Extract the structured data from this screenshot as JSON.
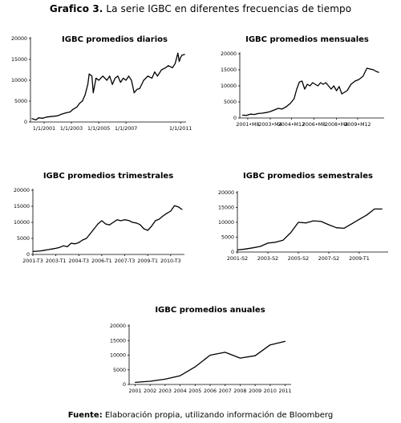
{
  "figure": {
    "label": "Grafico 3.",
    "title": "La serie IGBC en diferentes frecuencias de tiempo",
    "source_label": "Fuente:",
    "source_text": "Elaboración propia, utilizando información de Bloomberg"
  },
  "chart_data": [
    {
      "id": "diarios",
      "type": "line",
      "title": "IGBC promedios diarios",
      "xlabel": "",
      "ylabel": "",
      "ylim": [
        0,
        20000
      ],
      "yticks": [
        0,
        5000,
        10000,
        15000,
        20000
      ],
      "xlim": [
        2000.0,
        2011.4
      ],
      "xticks": [
        {
          "label": "1/1/2001",
          "x": 2001.0
        },
        {
          "label": "1/1/2003",
          "x": 2003.0
        },
        {
          "label": "1/1/2005",
          "x": 2005.0
        },
        {
          "label": "1/1/2007",
          "x": 2007.0
        },
        {
          "label": "1/1/2011",
          "x": 2011.0
        }
      ],
      "grid": false,
      "series": [
        {
          "x": [
            2000.1,
            2000.4,
            2000.6,
            2000.9,
            2001.2,
            2001.5,
            2001.8,
            2002.0,
            2002.3,
            2002.6,
            2002.9,
            2003.1,
            2003.4,
            2003.6,
            2003.8,
            2004.0,
            2004.2,
            2004.3,
            2004.5,
            2004.6,
            2004.8,
            2005.0,
            2005.3,
            2005.6,
            2005.8,
            2006.0,
            2006.2,
            2006.4,
            2006.6,
            2006.8,
            2007.0,
            2007.2,
            2007.4,
            2007.6,
            2007.8,
            2008.0,
            2008.3,
            2008.6,
            2008.9,
            2009.1,
            2009.3,
            2009.6,
            2009.9,
            2010.1,
            2010.4,
            2010.6,
            2010.8,
            2010.9,
            2011.0,
            2011.1,
            2011.3
          ],
          "values": [
            800,
            500,
            1000,
            900,
            1200,
            1300,
            1400,
            1500,
            1900,
            2200,
            2400,
            3000,
            3600,
            4500,
            5000,
            6500,
            9000,
            11500,
            11000,
            7000,
            10500,
            10000,
            11000,
            10000,
            11000,
            9000,
            10500,
            11000,
            9500,
            10500,
            10000,
            11000,
            10000,
            7000,
            7800,
            8000,
            10000,
            11000,
            10500,
            12000,
            11000,
            12500,
            13000,
            13500,
            13000,
            14000,
            16500,
            14500,
            15500,
            16000,
            16200
          ]
        }
      ]
    },
    {
      "id": "mensuales",
      "type": "line",
      "title": "IGBC promedios mensuales",
      "xlabel": "",
      "ylabel": "",
      "ylim": [
        0,
        20000
      ],
      "yticks": [
        0,
        5000,
        10000,
        15000,
        20000
      ],
      "xlim": [
        2001.0,
        2011.9
      ],
      "xticks": [
        {
          "label": "2001•M8",
          "x": 2001.6
        },
        {
          "label": "2003•M4",
          "x": 2003.3
        },
        {
          "label": "2004•M12",
          "x": 2004.9
        },
        {
          "label": "2006•M8",
          "x": 2006.6
        },
        {
          "label": "2008•M4",
          "x": 2008.3
        },
        {
          "label": "2009•M12",
          "x": 2009.9
        }
      ],
      "grid": false,
      "series": [
        {
          "x": [
            2001.2,
            2001.5,
            2001.8,
            2002.1,
            2002.4,
            2002.7,
            2003.0,
            2003.3,
            2003.6,
            2003.9,
            2004.2,
            2004.5,
            2004.8,
            2005.1,
            2005.3,
            2005.5,
            2005.7,
            2005.9,
            2006.1,
            2006.3,
            2006.5,
            2006.7,
            2006.9,
            2007.1,
            2007.3,
            2007.5,
            2007.7,
            2007.9,
            2008.1,
            2008.3,
            2008.5,
            2008.7,
            2008.9,
            2009.1,
            2009.4,
            2009.7,
            2010.0,
            2010.3,
            2010.6,
            2010.9,
            2011.1,
            2011.3,
            2011.5
          ],
          "values": [
            900,
            800,
            1200,
            1100,
            1400,
            1500,
            1700,
            2000,
            2500,
            3000,
            2800,
            3500,
            4500,
            6000,
            9000,
            11200,
            11500,
            9000,
            10500,
            10000,
            11000,
            10500,
            10000,
            11000,
            10500,
            11000,
            10000,
            9000,
            10000,
            8500,
            9800,
            7500,
            8000,
            8500,
            10500,
            11500,
            12000,
            13000,
            15500,
            15200,
            15000,
            14500,
            14200
          ]
        }
      ]
    },
    {
      "id": "trimestrales",
      "type": "line",
      "title": "IGBC promedios trimestrales",
      "xlabel": "",
      "ylabel": "",
      "ylim": [
        0,
        20000
      ],
      "yticks": [
        0,
        5000,
        10000,
        15000,
        20000
      ],
      "xlim": [
        2001.5,
        2011.4
      ],
      "xticks": [
        {
          "label": "2001-T3",
          "x": 2001.5
        },
        {
          "label": "2003-T1",
          "x": 2003.0
        },
        {
          "label": "2004-T3",
          "x": 2004.5
        },
        {
          "label": "2006-T1",
          "x": 2006.0
        },
        {
          "label": "2007-T3",
          "x": 2007.5
        },
        {
          "label": "2009-T1",
          "x": 2009.0
        },
        {
          "label": "2010-T3",
          "x": 2010.5
        }
      ],
      "grid": false,
      "series": [
        {
          "x": [
            2001.5,
            2001.75,
            2002.0,
            2002.25,
            2002.5,
            2002.75,
            2003.0,
            2003.25,
            2003.5,
            2003.75,
            2004.0,
            2004.25,
            2004.5,
            2004.75,
            2005.0,
            2005.25,
            2005.5,
            2005.75,
            2006.0,
            2006.25,
            2006.5,
            2006.75,
            2007.0,
            2007.25,
            2007.5,
            2007.75,
            2008.0,
            2008.25,
            2008.5,
            2008.75,
            2009.0,
            2009.25,
            2009.5,
            2009.75,
            2010.0,
            2010.25,
            2010.5,
            2010.75,
            2011.0,
            2011.25
          ],
          "values": [
            900,
            1000,
            1100,
            1300,
            1500,
            1700,
            1900,
            2200,
            2700,
            2400,
            3500,
            3300,
            3700,
            4500,
            5000,
            6500,
            8000,
            9500,
            10500,
            9500,
            9200,
            10000,
            10800,
            10500,
            10800,
            10600,
            10000,
            9800,
            9300,
            8000,
            7500,
            8800,
            10500,
            11000,
            12000,
            12800,
            13500,
            15200,
            14800,
            14000
          ]
        }
      ]
    },
    {
      "id": "semestrales",
      "type": "line",
      "title": "IGBC promedios semestrales",
      "xlabel": "",
      "ylabel": "",
      "ylim": [
        0,
        20000
      ],
      "yticks": [
        0,
        5000,
        10000,
        15000,
        20000
      ],
      "xlim": [
        2001.5,
        2011.4
      ],
      "xticks": [
        {
          "label": "2001-S2",
          "x": 2001.5
        },
        {
          "label": "2003-S2",
          "x": 2003.5
        },
        {
          "label": "2005-S2",
          "x": 2005.5
        },
        {
          "label": "2007-S2",
          "x": 2007.5
        },
        {
          "label": "2009-T1",
          "x": 2009.5
        }
      ],
      "grid": false,
      "series": [
        {
          "x": [
            2001.5,
            2002.0,
            2002.5,
            2003.0,
            2003.5,
            2004.0,
            2004.5,
            2005.0,
            2005.5,
            2006.0,
            2006.5,
            2007.0,
            2007.5,
            2008.0,
            2008.5,
            2009.0,
            2009.5,
            2010.0,
            2010.5,
            2011.0
          ],
          "values": [
            700,
            1000,
            1400,
            1900,
            3000,
            3300,
            4000,
            6500,
            10000,
            9800,
            10500,
            10300,
            9200,
            8200,
            8000,
            9500,
            11000,
            12500,
            14500,
            14500
          ]
        }
      ]
    },
    {
      "id": "anuales",
      "type": "line",
      "title": "IGBC promedios anuales",
      "xlabel": "",
      "ylabel": "",
      "ylim": [
        0,
        20000
      ],
      "yticks": [
        0,
        5000,
        10000,
        15000,
        20000
      ],
      "xlim": [
        2000.6,
        2011.4
      ],
      "xticks": [
        {
          "label": "2001",
          "x": 2001
        },
        {
          "label": "2002",
          "x": 2002
        },
        {
          "label": "2003",
          "x": 2003
        },
        {
          "label": "2004",
          "x": 2004
        },
        {
          "label": "2005",
          "x": 2005
        },
        {
          "label": "2006",
          "x": 2006
        },
        {
          "label": "2007",
          "x": 2007
        },
        {
          "label": "2008",
          "x": 2008
        },
        {
          "label": "2009",
          "x": 2009
        },
        {
          "label": "2010",
          "x": 2010
        },
        {
          "label": "2011",
          "x": 2011
        }
      ],
      "grid": false,
      "series": [
        {
          "x": [
            2001,
            2002,
            2003,
            2004,
            2005,
            2006,
            2007,
            2008,
            2009,
            2010,
            2011
          ],
          "values": [
            700,
            1100,
            1800,
            3000,
            6000,
            10000,
            11000,
            9000,
            9800,
            13500,
            14700
          ]
        }
      ]
    }
  ]
}
